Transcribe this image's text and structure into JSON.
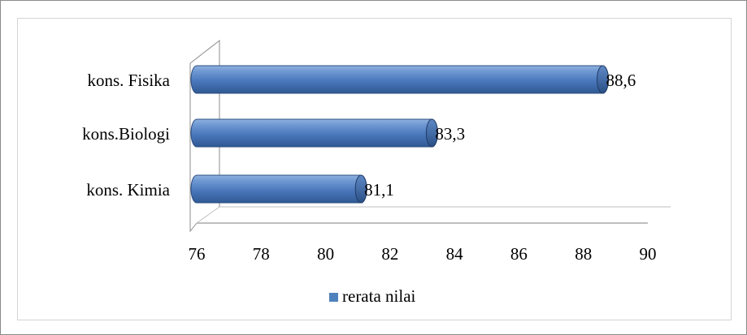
{
  "chart_data": {
    "type": "bar",
    "orientation": "horizontal",
    "categories": [
      "kons. Fisika",
      "kons.Biologi",
      "kons. Kimia"
    ],
    "series": [
      {
        "name": "rerata nilai",
        "values": [
          88.6,
          83.3,
          81.1
        ],
        "color": "#4f81bd"
      }
    ],
    "data_labels": [
      "88,6",
      "83,3",
      "81,1"
    ],
    "xlim": [
      76,
      90
    ],
    "xticks": [
      "76",
      "78",
      "80",
      "82",
      "84",
      "86",
      "88",
      "90"
    ],
    "title": "",
    "xlabel": "",
    "ylabel": "",
    "grid": false,
    "legend": "bottom",
    "style": "3d-cylinder"
  }
}
